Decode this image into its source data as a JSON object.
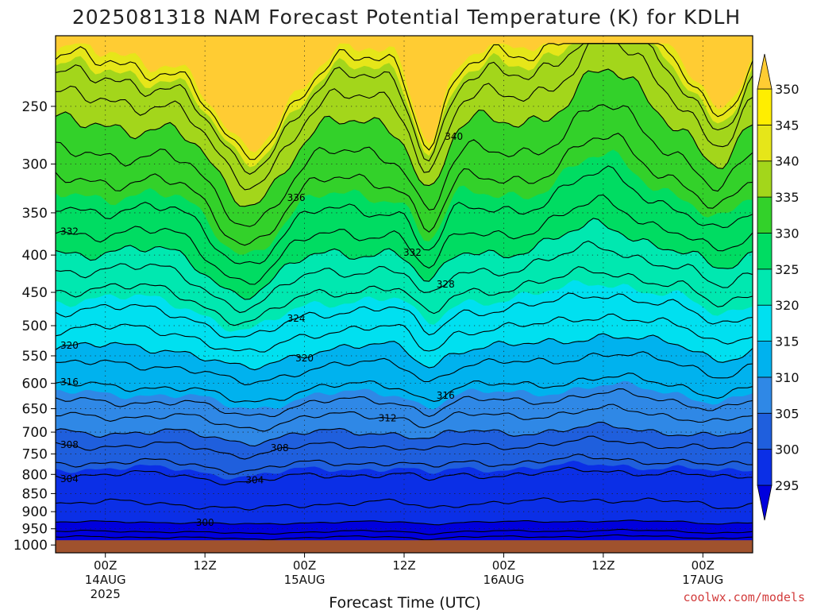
{
  "chart_data": {
    "type": "contour",
    "title": "2025081318 NAM Forecast Potential Temperature (K) for KDLH",
    "xlabel": "Forecast Time (UTC)",
    "ylabel": "",
    "credit": "coolwx.com/models",
    "x_ticks": [
      {
        "label": "00Z",
        "sub": "14AUG",
        "sub2": "2025",
        "hour": 6
      },
      {
        "label": "12Z",
        "sub": "",
        "sub2": "",
        "hour": 18
      },
      {
        "label": "00Z",
        "sub": "15AUG",
        "sub2": "",
        "hour": 30
      },
      {
        "label": "12Z",
        "sub": "",
        "sub2": "",
        "hour": 42
      },
      {
        "label": "00Z",
        "sub": "16AUG",
        "sub2": "",
        "hour": 54
      },
      {
        "label": "12Z",
        "sub": "",
        "sub2": "",
        "hour": 66
      },
      {
        "label": "00Z",
        "sub": "17AUG",
        "sub2": "",
        "hour": 78
      }
    ],
    "xlim_hours": [
      0,
      84
    ],
    "y_axis": {
      "units": "hPa",
      "ylim": [
        200,
        1025
      ],
      "scale": "pressure",
      "ticks": [
        250,
        300,
        350,
        400,
        450,
        500,
        550,
        600,
        650,
        700,
        750,
        800,
        850,
        900,
        950,
        1000
      ]
    },
    "ground_pressure": 985,
    "colorbar": {
      "levels": [
        295,
        300,
        305,
        310,
        315,
        320,
        325,
        330,
        335,
        340,
        345,
        350
      ],
      "colors": [
        "#0000dd",
        "#0b2fe6",
        "#1f5fdd",
        "#2f88e6",
        "#00b2ee",
        "#00e0f0",
        "#00e8b0",
        "#00dc62",
        "#33d12a",
        "#a3d61b",
        "#e6e619",
        "#ffee00",
        "#ffcc33"
      ]
    },
    "contour_interval": 2,
    "isentropes": [
      {
        "theta": 296,
        "base_p": 975,
        "label": false
      },
      {
        "theta": 298,
        "base_p": 958,
        "label": false
      },
      {
        "theta": 300,
        "base_p": 930,
        "label": true,
        "label_hour": 18
      },
      {
        "theta": 302,
        "base_p": 875,
        "label": false
      },
      {
        "theta": 304,
        "base_p": 800,
        "label": true,
        "label_hour": 24
      },
      {
        "theta": 306,
        "base_p": 770,
        "label": false
      },
      {
        "theta": 308,
        "base_p": 730,
        "label": true,
        "label_hour": 27
      },
      {
        "theta": 310,
        "base_p": 700,
        "label": false
      },
      {
        "theta": 312,
        "base_p": 665,
        "label": true,
        "label_hour": 40
      },
      {
        "theta": 314,
        "base_p": 635,
        "label": false
      },
      {
        "theta": 316,
        "base_p": 605,
        "label": true,
        "label_hour": 47
      },
      {
        "theta": 318,
        "base_p": 565,
        "label": false
      },
      {
        "theta": 320,
        "base_p": 535,
        "label": true,
        "label_hour": 30
      },
      {
        "theta": 322,
        "base_p": 505,
        "label": false
      },
      {
        "theta": 324,
        "base_p": 475,
        "label": true,
        "label_hour": 29
      },
      {
        "theta": 326,
        "base_p": 445,
        "label": false
      },
      {
        "theta": 328,
        "base_p": 418,
        "label": true,
        "label_hour": 47
      },
      {
        "theta": 330,
        "base_p": 395,
        "label": false
      },
      {
        "theta": 332,
        "base_p": 372,
        "label": true,
        "label_hour": 43
      },
      {
        "theta": 334,
        "base_p": 345,
        "label": false
      },
      {
        "theta": 336,
        "base_p": 315,
        "label": true,
        "label_hour": 29
      },
      {
        "theta": 338,
        "base_p": 290,
        "label": false
      },
      {
        "theta": 340,
        "base_p": 265,
        "label": true,
        "label_hour": 48
      },
      {
        "theta": 342,
        "base_p": 245,
        "label": false
      },
      {
        "theta": 344,
        "base_p": 230,
        "label": false
      },
      {
        "theta": 346,
        "base_p": 218,
        "label": false
      }
    ],
    "edge_labels_left": [
      {
        "theta": 304,
        "label": "304"
      },
      {
        "theta": 308,
        "label": "308"
      },
      {
        "theta": 316,
        "label": "316"
      },
      {
        "theta": 320,
        "label": "320"
      },
      {
        "theta": 332,
        "label": "332"
      }
    ]
  }
}
